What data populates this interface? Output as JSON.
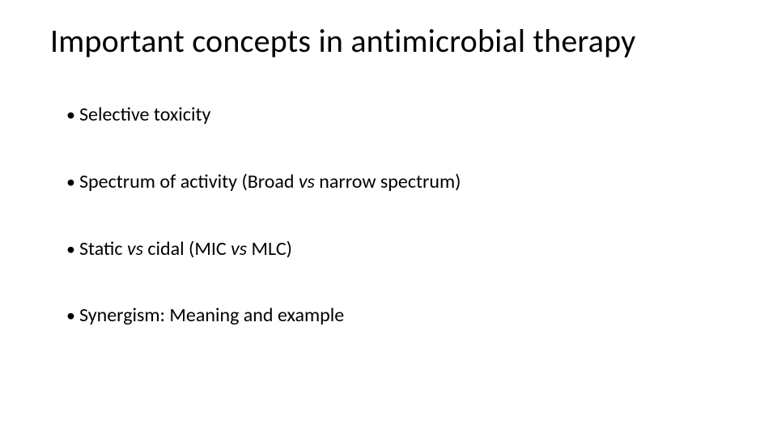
{
  "background_color": "#ffffff",
  "text_color": "#000000",
  "title": {
    "text": "Important concepts in antimicrobial therapy",
    "fontsize": 40,
    "fontweight": 400
  },
  "bullets": {
    "fontsize": 24,
    "marker": "•",
    "items": [
      {
        "pre": "Selective toxicity",
        "it1": "",
        "mid": "",
        "it2": "",
        "post": ""
      },
      {
        "pre": "Spectrum of activity (Broad ",
        "it1": "vs",
        "mid": " narrow spectrum)",
        "it2": "",
        "post": ""
      },
      {
        "pre": "Static ",
        "it1": "vs",
        "mid": " cidal (MIC ",
        "it2": "vs",
        "post": " MLC)"
      },
      {
        "pre": "Synergism: Meaning and example",
        "it1": "",
        "mid": "",
        "it2": "",
        "post": ""
      }
    ]
  }
}
